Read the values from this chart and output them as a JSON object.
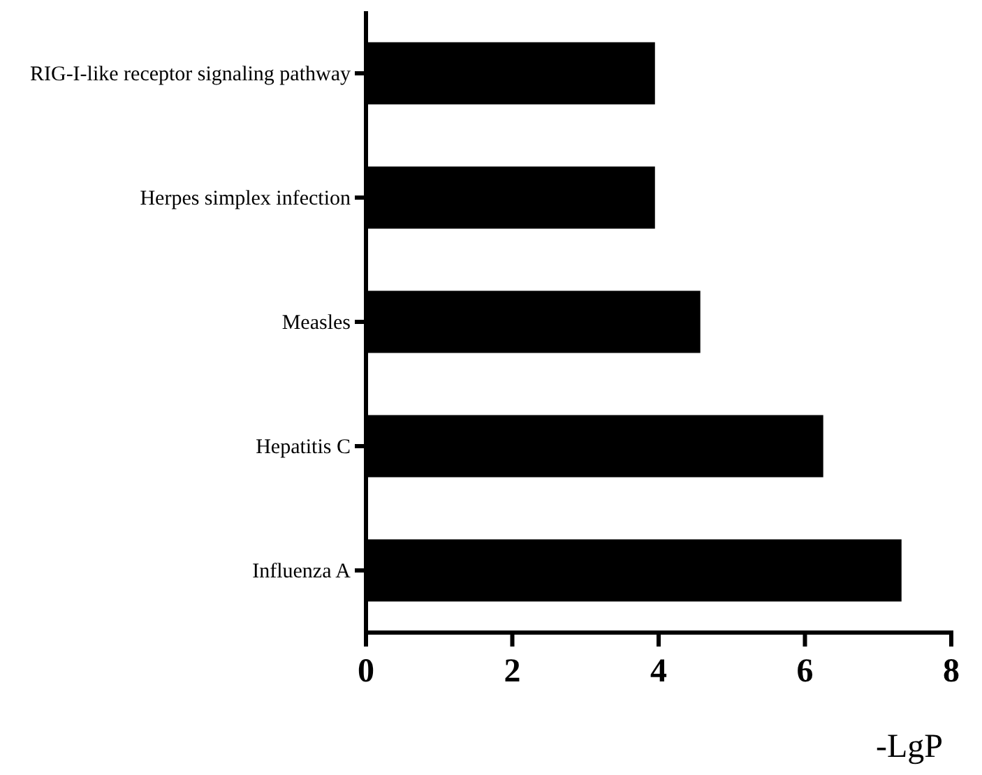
{
  "chart_data": {
    "type": "bar",
    "orientation": "horizontal",
    "categories": [
      "RIG-I-like receptor signaling pathway",
      "Herpes simplex infection",
      "Measles",
      "Hepatitis C",
      "Influenza A"
    ],
    "values": [
      3.95,
      3.95,
      4.57,
      6.25,
      7.32
    ],
    "color": "#000000",
    "xlabel": "-LgP",
    "xlim": [
      0,
      8
    ],
    "xticks": [
      0,
      2,
      4,
      6,
      8
    ],
    "grid": false
  }
}
